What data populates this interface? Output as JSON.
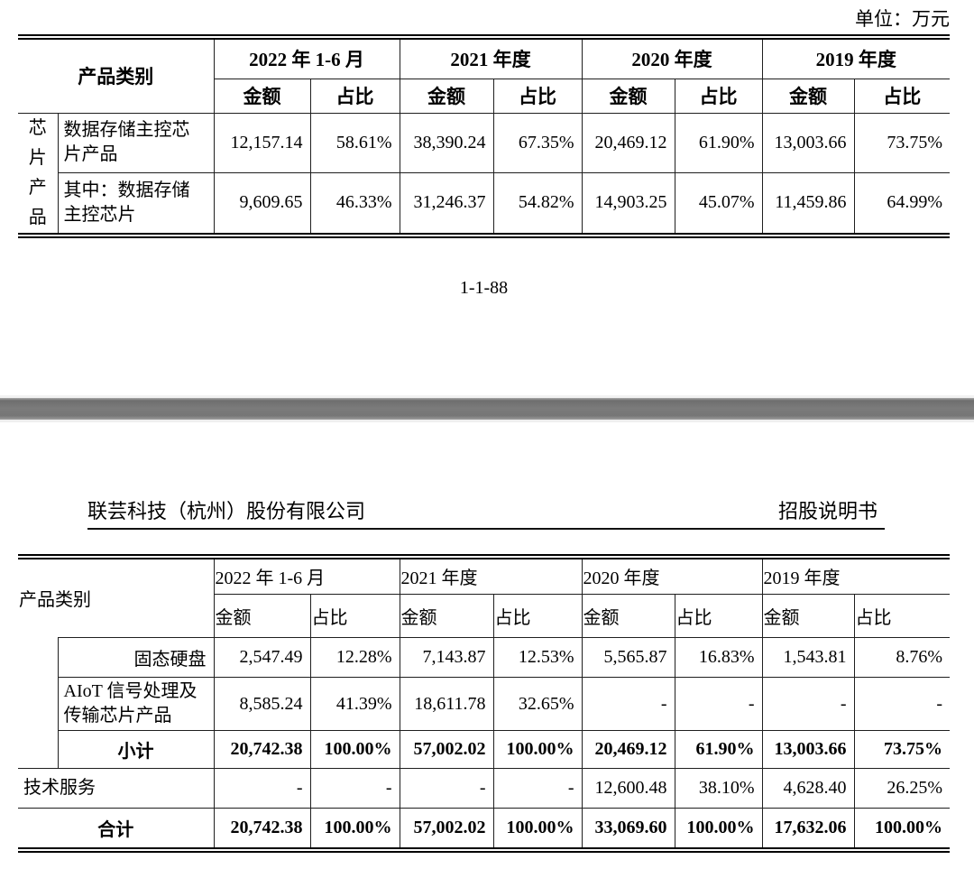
{
  "unit_label": "单位：万元",
  "page_number": "1-1-88",
  "page2_header": {
    "company": "联芸科技（杭州）股份有限公司",
    "doc_title": "招股说明书"
  },
  "table_header": {
    "category": "产品类别",
    "periods": [
      "2022 年 1-6 月",
      "2021 年度",
      "2020 年度",
      "2019 年度"
    ],
    "amount_label": "金额",
    "ratio_label": "占比"
  },
  "table1": {
    "group_label": "芯片产品",
    "rows": [
      {
        "label": "数据存储主控芯片产品",
        "values": [
          "12,157.14",
          "58.61%",
          "38,390.24",
          "67.35%",
          "20,469.12",
          "61.90%",
          "13,003.66",
          "73.75%"
        ]
      },
      {
        "label": "其中：数据存储主控芯片",
        "values": [
          "9,609.65",
          "46.33%",
          "31,246.37",
          "54.82%",
          "14,903.25",
          "45.07%",
          "11,459.86",
          "64.99%"
        ]
      }
    ]
  },
  "table2": {
    "rows": [
      {
        "label": "固态硬盘",
        "values": [
          "2,547.49",
          "12.28%",
          "7,143.87",
          "12.53%",
          "5,565.87",
          "16.83%",
          "1,543.81",
          "8.76%"
        ]
      },
      {
        "label": "AIoT 信号处理及传输芯片产品",
        "values": [
          "8,585.24",
          "41.39%",
          "18,611.78",
          "32.65%",
          "-",
          "-",
          "-",
          "-"
        ]
      },
      {
        "label": "小计",
        "values": [
          "20,742.38",
          "100.00%",
          "57,002.02",
          "100.00%",
          "20,469.12",
          "61.90%",
          "13,003.66",
          "73.75%"
        ]
      },
      {
        "label": "技术服务",
        "values": [
          "-",
          "-",
          "-",
          "-",
          "12,600.48",
          "38.10%",
          "4,628.40",
          "26.25%"
        ]
      },
      {
        "label": "合计",
        "values": [
          "20,742.38",
          "100.00%",
          "57,002.02",
          "100.00%",
          "33,069.60",
          "100.00%",
          "17,632.06",
          "100.00%"
        ]
      }
    ]
  },
  "colors": {
    "separator_gray": "#7b7b7b",
    "border_black": "#000000"
  }
}
